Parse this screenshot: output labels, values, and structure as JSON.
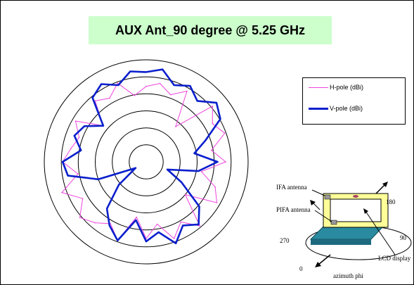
{
  "title": "AUX Ant_90 degree @ 5.25 GHz",
  "colors": {
    "title_bg": "#ccffcc",
    "h_pole": "#ee44dd",
    "v_pole": "#0a1fcc",
    "laptop_lid": "#ffff99",
    "laptop_base": "#2a8aa0"
  },
  "legend": {
    "h_pole": "H-pole  (dBi)",
    "v_pole": "V-pole  (dBi)"
  },
  "diagram": {
    "ifa_antenna": "IFA antenna",
    "pifa_antenna": "PIFA antenna",
    "angle_180": "180",
    "angle_270": "270",
    "angle_90": "90",
    "angle_0": "0",
    "lcd_display": "LCD display",
    "azimuth": "azimuth phi"
  },
  "chart_data": {
    "type": "polar",
    "title": "AUX Ant_90 degree @ 5.25 GHz",
    "rings": 6,
    "gridlines": true,
    "legend_placement": "right",
    "theta_deg": [
      0,
      10,
      20,
      30,
      40,
      50,
      60,
      70,
      80,
      90,
      100,
      110,
      120,
      130,
      140,
      150,
      160,
      170,
      180,
      190,
      200,
      210,
      220,
      230,
      240,
      250,
      260,
      270,
      280,
      290,
      300,
      310,
      320,
      330,
      340,
      350
    ],
    "series": [
      {
        "name": "H-pole  (dBi)",
        "r_fraction": [
          0.74,
          0.78,
          0.7,
          0.8,
          0.45,
          0.85,
          0.75,
          0.82,
          0.65,
          0.78,
          0.55,
          0.72,
          0.8,
          0.5,
          0.82,
          0.68,
          0.8,
          0.62,
          0.75,
          0.55,
          0.82,
          0.7,
          0.78,
          0.85,
          0.72,
          0.88,
          0.68,
          0.82,
          0.75,
          0.7,
          0.8,
          0.55,
          0.78,
          0.72,
          0.82,
          0.66
        ]
      },
      {
        "name": "V-pole  (dBi)",
        "r_fraction": [
          0.88,
          0.92,
          0.8,
          0.86,
          0.78,
          0.9,
          0.84,
          0.62,
          0.48,
          0.7,
          0.52,
          0.22,
          0.4,
          0.68,
          0.8,
          0.72,
          0.85,
          0.7,
          0.78,
          0.58,
          0.82,
          0.72,
          0.6,
          0.35,
          0.12,
          0.5,
          0.78,
          0.82,
          0.65,
          0.75,
          0.7,
          0.55,
          0.82,
          0.88,
          0.8,
          0.9
        ]
      }
    ]
  }
}
